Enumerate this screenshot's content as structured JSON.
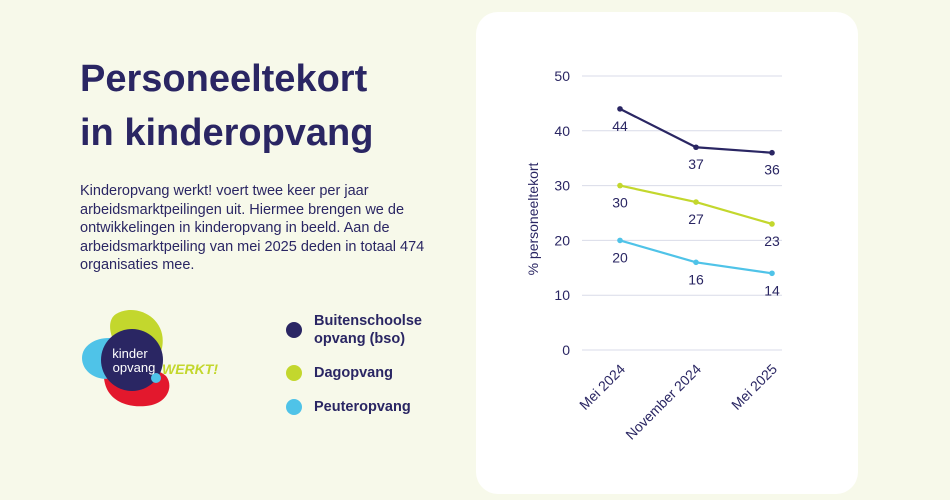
{
  "title_lines": [
    "Personeeltekort",
    "in kinderopvang"
  ],
  "intro": "Kinderopvang werkt! voert twee keer per jaar arbeidsmarktpeilingen uit. Hiermee brengen we de ontwikkelingen in kinderopvang in beeld. Aan de arbeidsmarktpeiling van mei 2025 deden in totaal 474 organisaties mee.",
  "logo": {
    "line1": "kinder",
    "line2": "opvang",
    "tagline": "WERKT!",
    "colors": {
      "navy": "#2a2663",
      "lime": "#c3d72d",
      "red": "#e3182d",
      "blue": "#4fc3e8"
    }
  },
  "legend": [
    {
      "label_lines": [
        "Buitenschoolse",
        "opvang (bso)"
      ],
      "color": "#2a2663"
    },
    {
      "label_lines": [
        "Dagopvang"
      ],
      "color": "#c3d72d"
    },
    {
      "label_lines": [
        "Peuteropvang"
      ],
      "color": "#4fc3e8"
    }
  ],
  "chart_data": {
    "type": "line",
    "categories": [
      "Mei 2024",
      "November 2024",
      "Mei 2025"
    ],
    "ylabel": "% personeeltekort",
    "ylim": [
      0,
      50
    ],
    "yticks": [
      0,
      10,
      20,
      30,
      40,
      50
    ],
    "grid": true,
    "legend_position": "left",
    "series": [
      {
        "name": "Buitenschoolse opvang (bso)",
        "values": [
          44,
          37,
          36
        ],
        "color": "#2a2663"
      },
      {
        "name": "Dagopvang",
        "values": [
          30,
          27,
          23
        ],
        "color": "#c3d72d"
      },
      {
        "name": "Peuteropvang",
        "values": [
          20,
          16,
          14
        ],
        "color": "#4fc3e8"
      }
    ]
  }
}
